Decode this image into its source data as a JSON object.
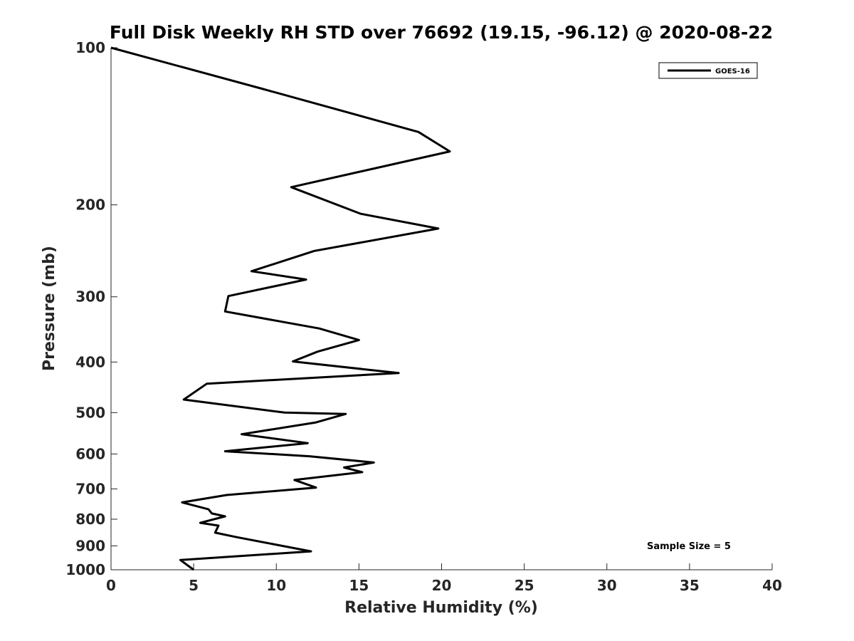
{
  "chart_data": {
    "type": "line",
    "title": "Full Disk Weekly RH STD over 76692 (19.15, -96.12) @ 2020-08-22",
    "xlabel": "Relative Humidity (%)",
    "ylabel": "Pressure (mb)",
    "xlim": [
      0,
      40
    ],
    "ylim": [
      100,
      1000
    ],
    "y_scale": "log",
    "y_reversed": true,
    "x_ticks": [
      0,
      5,
      10,
      15,
      20,
      25,
      30,
      35,
      40
    ],
    "x_tick_labels": [
      "0",
      "5",
      "10",
      "15",
      "20",
      "25",
      "30",
      "35",
      "40"
    ],
    "y_ticks": [
      100,
      200,
      300,
      400,
      500,
      600,
      700,
      800,
      900,
      1000
    ],
    "y_tick_labels": [
      "100",
      "200",
      "300",
      "400",
      "500",
      "600",
      "700",
      "800",
      "900",
      "1000"
    ],
    "grid": false,
    "legend_position": "top-right",
    "series": [
      {
        "name": "GOES-16",
        "color": "#000000",
        "x": [
          0.0,
          9.2,
          18.6,
          20.5,
          10.9,
          15.1,
          19.8,
          12.3,
          8.5,
          11.8,
          7.1,
          6.9,
          12.6,
          15.0,
          12.5,
          11.0,
          17.4,
          5.8,
          4.4,
          10.5,
          14.2,
          12.4,
          7.9,
          11.9,
          6.9,
          12.0,
          15.9,
          14.1,
          15.2,
          11.1,
          12.4,
          7.0,
          4.3,
          5.9,
          6.1,
          6.9,
          5.4,
          6.5,
          6.3,
          7.6,
          12.1,
          4.2,
          5.0
        ],
        "y": [
          100,
          120,
          145,
          158,
          185,
          208,
          222,
          245,
          268,
          278,
          299,
          320,
          345,
          363,
          382,
          399,
          420,
          440,
          472,
          500,
          503,
          522,
          550,
          572,
          593,
          606,
          623,
          637,
          650,
          673,
          696,
          719,
          743,
          766,
          780,
          790,
          813,
          823,
          849,
          866,
          922,
          958,
          1000
        ]
      }
    ],
    "annotations": [
      "Sample Size = 5"
    ]
  }
}
